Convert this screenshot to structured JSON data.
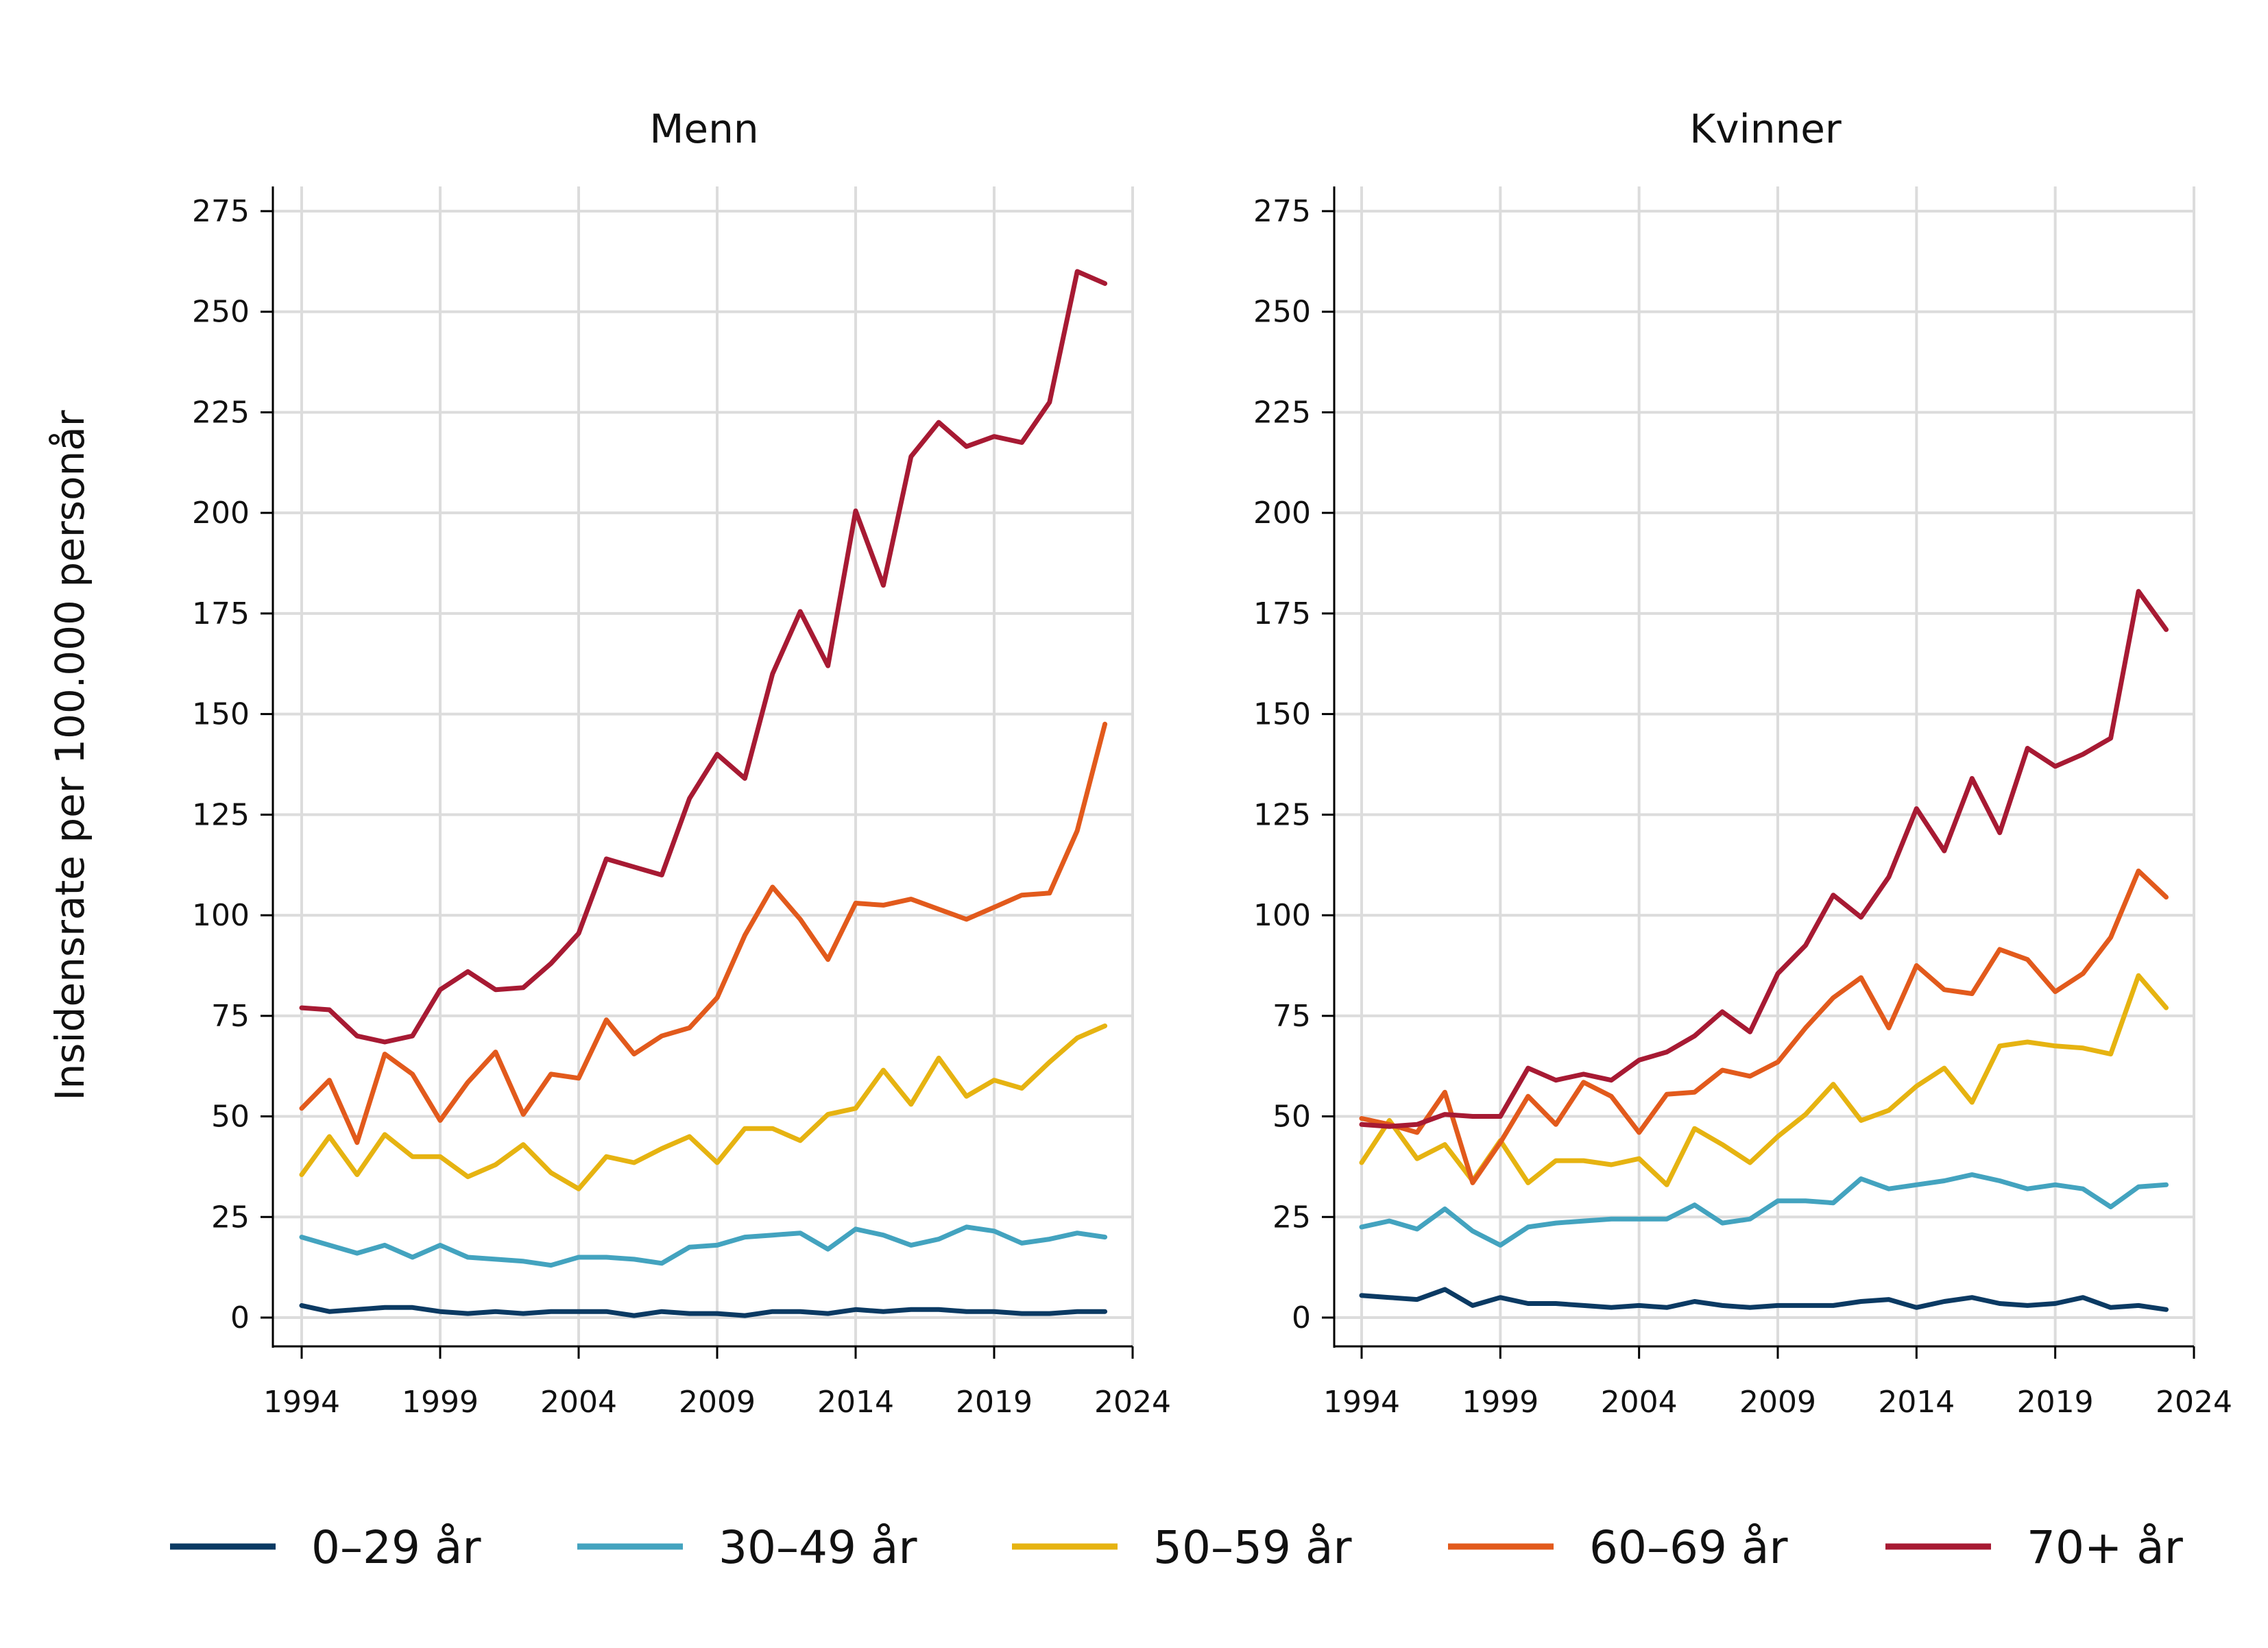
{
  "ylabel": "Insidensrate per 100.000 personår",
  "chart_data": {
    "type": "line",
    "ylabel": "Insidensrate per 100.000 personår",
    "xlim": [
      1994,
      2024
    ],
    "ylim": [
      0,
      275
    ],
    "x_ticks": [
      "1994",
      "1999",
      "2004",
      "2009",
      "2014",
      "2019",
      "2024"
    ],
    "y_ticks": [
      "0",
      "25",
      "50",
      "75",
      "100",
      "125",
      "150",
      "175",
      "200",
      "225",
      "250",
      "275"
    ],
    "grid": true,
    "legend_position": "bottom",
    "x": [
      1994,
      1995,
      1996,
      1997,
      1998,
      1999,
      2000,
      2001,
      2002,
      2003,
      2004,
      2005,
      2006,
      2007,
      2008,
      2009,
      2010,
      2011,
      2012,
      2013,
      2014,
      2015,
      2016,
      2017,
      2018,
      2019,
      2020,
      2021,
      2022,
      2023
    ],
    "legend": [
      {
        "label": "0–29 år",
        "color": "#0b3a63"
      },
      {
        "label": "30–49 år",
        "color": "#43a3bf"
      },
      {
        "label": "50–59 år",
        "color": "#e6b311"
      },
      {
        "label": "60–69 år",
        "color": "#e25a1c"
      },
      {
        "label": "70+ år",
        "color": "#a71a33"
      }
    ],
    "panels": [
      {
        "title": "Menn",
        "series": [
          {
            "name": "0–29 år",
            "color": "#0b3a63",
            "values": [
              3,
              1.5,
              2,
              2.5,
              2.5,
              1.5,
              1,
              1.5,
              1,
              1.5,
              1.5,
              1.5,
              0.5,
              1.5,
              1,
              1,
              0.5,
              1.5,
              1.5,
              1,
              2,
              1.5,
              2,
              2,
              1.5,
              1.5,
              1,
              1,
              1.5,
              1.5
            ]
          },
          {
            "name": "30–49 år",
            "color": "#43a3bf",
            "values": [
              20,
              18,
              16,
              18,
              15,
              18,
              15,
              14.5,
              14,
              13,
              15,
              15,
              14.5,
              13.5,
              17.5,
              18,
              20,
              20.5,
              21,
              17,
              22,
              20.5,
              18,
              19.5,
              22.5,
              21.5,
              18.5,
              19.5,
              21,
              20
            ]
          },
          {
            "name": "50–59 år",
            "color": "#e6b311",
            "values": [
              35.5,
              45,
              35.5,
              45.5,
              40,
              40,
              35,
              38,
              43,
              36,
              32,
              40,
              38.5,
              42,
              45,
              38.5,
              47,
              47,
              44,
              50.5,
              52,
              61.5,
              53,
              64.5,
              55,
              59,
              57,
              63.5,
              69.5,
              72.5
            ]
          },
          {
            "name": "60–69 år",
            "color": "#e25a1c",
            "values": [
              52,
              59,
              43.5,
              65.5,
              60.5,
              49,
              58.5,
              66,
              50.5,
              60.5,
              59.5,
              74,
              65.5,
              70,
              72,
              79.5,
              95,
              107,
              99,
              89,
              103,
              102.5,
              104,
              101.5,
              99,
              102,
              105,
              105.5,
              121,
              147.5
            ]
          },
          {
            "name": "70+ år",
            "color": "#a71a33",
            "values": [
              77,
              76.5,
              70,
              68.5,
              70,
              81.5,
              86,
              81.5,
              82,
              88,
              95.5,
              114,
              112,
              110,
              129,
              140,
              134,
              160,
              175.5,
              162,
              200.5,
              182,
              214,
              222.5,
              216.5,
              219,
              217.5,
              227.5,
              260,
              257
            ]
          }
        ]
      },
      {
        "title": "Kvinner",
        "series": [
          {
            "name": "0–29 år",
            "color": "#0b3a63",
            "values": [
              5.5,
              5,
              4.5,
              7,
              3,
              5,
              3.5,
              3.5,
              3,
              2.5,
              3,
              2.5,
              4,
              3,
              2.5,
              3,
              3,
              3,
              4,
              4.5,
              2.5,
              4,
              5,
              3.5,
              3,
              3.5,
              5,
              2.5,
              3,
              2
            ]
          },
          {
            "name": "30–49 år",
            "color": "#43a3bf",
            "values": [
              22.5,
              24,
              22,
              27,
              21.5,
              18,
              22.5,
              23.5,
              24,
              24.5,
              24.5,
              24.5,
              28,
              23.5,
              24.5,
              29,
              29,
              28.5,
              34.5,
              32,
              33,
              34,
              35.5,
              34,
              32,
              33,
              32,
              27.5,
              32.5,
              33
            ]
          },
          {
            "name": "50–59 år",
            "color": "#e6b311",
            "values": [
              38.5,
              49,
              39.5,
              43,
              34,
              44,
              33.5,
              39,
              39,
              38,
              39.5,
              33,
              47,
              43,
              38.5,
              45,
              50.5,
              58,
              49,
              51.5,
              57.5,
              62,
              53.5,
              67.5,
              68.5,
              67.5,
              67,
              65.5,
              85,
              77
            ]
          },
          {
            "name": "60–69 år",
            "color": "#e25a1c",
            "values": [
              49.5,
              48,
              46,
              56,
              33.5,
              43.5,
              55,
              48,
              58.5,
              55,
              46,
              55.5,
              56,
              61.5,
              60,
              63.5,
              72,
              79.5,
              84.5,
              72,
              87.5,
              81.5,
              80.5,
              91.5,
              89,
              81,
              85.5,
              94.5,
              111,
              104.5
            ]
          },
          {
            "name": "70+ år",
            "color": "#a71a33",
            "values": [
              48,
              47.5,
              48,
              50.5,
              50,
              50,
              62,
              59,
              60.5,
              59,
              64,
              66,
              70,
              76,
              71,
              85.5,
              92.5,
              105,
              99.5,
              109.5,
              126.5,
              116,
              134,
              120.5,
              141.5,
              137,
              140,
              144,
              180.5,
              171
            ]
          }
        ]
      }
    ]
  }
}
